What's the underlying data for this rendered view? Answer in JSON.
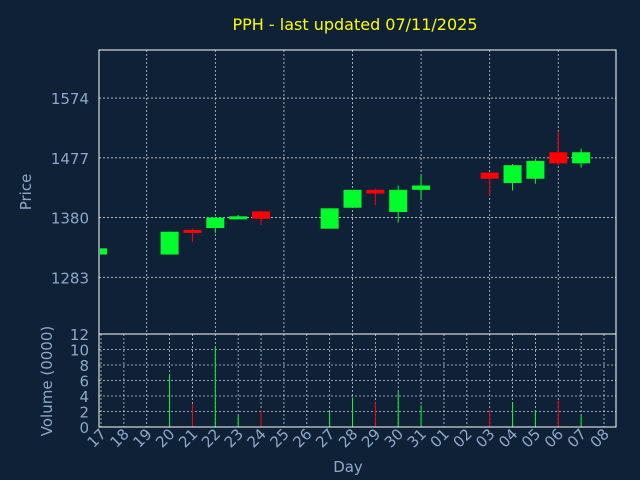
{
  "chart_data": {
    "type": "candlestick",
    "title": "PPH - last updated 07/11/2025",
    "xlabel": "Day",
    "price_panel": {
      "ylabel": "Price",
      "yticks": [
        1283,
        1380,
        1477,
        1574
      ],
      "ylim": [
        1191,
        1652
      ]
    },
    "volume_panel": {
      "ylabel": "Volume (0000)",
      "yticks": [
        0,
        2,
        4,
        6,
        8,
        10,
        12
      ],
      "ylim": [
        0,
        12
      ]
    },
    "day_labels": [
      "17",
      "18",
      "19",
      "20",
      "21",
      "22",
      "23",
      "24",
      "25",
      "26",
      "27",
      "28",
      "29",
      "30",
      "31",
      "01",
      "02",
      "03",
      "04",
      "05",
      "06",
      "07",
      "08"
    ],
    "candles": [
      {
        "day": 0,
        "open": 1320,
        "close": 1330,
        "high": 1330,
        "low": 1320,
        "volume": 0
      },
      {
        "day": 3,
        "open": 1320,
        "close": 1357,
        "high": 1357,
        "low": 1320,
        "volume": 6.8
      },
      {
        "day": 4,
        "open": 1360,
        "close": 1358,
        "high": 1362,
        "low": 1340,
        "volume": 3
      },
      {
        "day": 5,
        "open": 1363,
        "close": 1380,
        "high": 1381,
        "low": 1355,
        "volume": 10.3
      },
      {
        "day": 6,
        "open": 1380,
        "close": 1382,
        "high": 1384,
        "low": 1378,
        "volume": 1.5
      },
      {
        "day": 7,
        "open": 1390,
        "close": 1378,
        "high": 1391,
        "low": 1368,
        "volume": 2.2
      },
      {
        "day": 10,
        "open": 1362,
        "close": 1395,
        "high": 1395,
        "low": 1362,
        "volume": 2
      },
      {
        "day": 11,
        "open": 1396,
        "close": 1425,
        "high": 1425,
        "low": 1396,
        "volume": 3.8
      },
      {
        "day": 12,
        "open": 1425,
        "close": 1419,
        "high": 1427,
        "low": 1400,
        "volume": 3.2
      },
      {
        "day": 13,
        "open": 1389,
        "close": 1425,
        "high": 1432,
        "low": 1372,
        "volume": 4.5
      },
      {
        "day": 14,
        "open": 1425,
        "close": 1432,
        "high": 1450,
        "low": 1410,
        "volume": 2.8
      },
      {
        "day": 17,
        "open": 1453,
        "close": 1443,
        "high": 1453,
        "low": 1415,
        "volume": 2.2
      },
      {
        "day": 18,
        "open": 1436,
        "close": 1465,
        "high": 1467,
        "low": 1424,
        "volume": 3.2
      },
      {
        "day": 19,
        "open": 1443,
        "close": 1472,
        "high": 1475,
        "low": 1435,
        "volume": 2.2
      },
      {
        "day": 20,
        "open": 1486,
        "close": 1468,
        "high": 1520,
        "low": 1465,
        "volume": 3.4
      },
      {
        "day": 21,
        "open": 1468,
        "close": 1486,
        "high": 1492,
        "low": 1461,
        "volume": 1.5
      }
    ],
    "colors": {
      "up": "#00ff2a",
      "down": "#ff0000",
      "background": "#0f2136",
      "grid": "#ffffff",
      "title": "#ffff00",
      "labels": "#8fa8c8"
    }
  }
}
